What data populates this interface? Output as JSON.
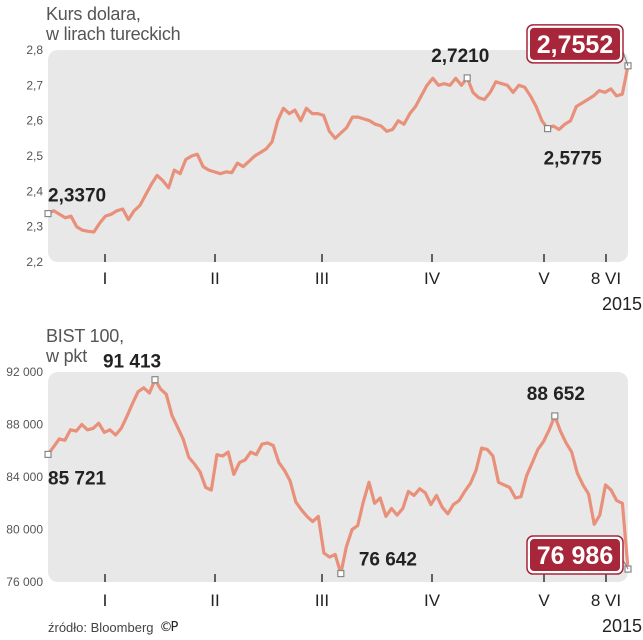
{
  "chart_data": [
    {
      "type": "line",
      "title": "Kurs dolara,",
      "subtitle": "w lirach tureckich",
      "ylim": [
        2.2,
        2.8
      ],
      "y_ticks": [
        "2,8",
        "2,7",
        "2,6",
        "2,5",
        "2,4",
        "2,3",
        "2,2"
      ],
      "x_tick_labels": [
        "I",
        "II",
        "III",
        "IV",
        "V",
        "8 VI"
      ],
      "year_label": "2015",
      "grid": false,
      "series": [
        {
          "color": "#e8907a",
          "values": [
            2.337,
            2.345,
            2.335,
            2.325,
            2.33,
            2.3,
            2.29,
            2.287,
            2.285,
            2.31,
            2.33,
            2.335,
            2.345,
            2.35,
            2.32,
            2.345,
            2.36,
            2.39,
            2.42,
            2.445,
            2.43,
            2.41,
            2.46,
            2.45,
            2.49,
            2.5,
            2.505,
            2.47,
            2.46,
            2.455,
            2.45,
            2.455,
            2.453,
            2.48,
            2.47,
            2.485,
            2.5,
            2.51,
            2.52,
            2.54,
            2.6,
            2.635,
            2.62,
            2.63,
            2.6,
            2.635,
            2.62,
            2.62,
            2.615,
            2.57,
            2.55,
            2.565,
            2.58,
            2.61,
            2.61,
            2.605,
            2.6,
            2.59,
            2.585,
            2.57,
            2.575,
            2.6,
            2.59,
            2.62,
            2.64,
            2.67,
            2.7,
            2.72,
            2.7,
            2.705,
            2.7,
            2.72,
            2.7,
            2.721,
            2.68,
            2.665,
            2.66,
            2.68,
            2.71,
            2.705,
            2.7,
            2.68,
            2.7,
            2.695,
            2.67,
            2.64,
            2.6,
            2.5775,
            2.585,
            2.575,
            2.59,
            2.6,
            2.64,
            2.65,
            2.66,
            2.67,
            2.685,
            2.68,
            2.69,
            2.67,
            2.675,
            2.7552
          ]
        }
      ],
      "annotations": [
        {
          "label": "2,3370",
          "index": 0,
          "value": 2.337
        },
        {
          "label": "2,7210",
          "index": 73,
          "value": 2.721
        },
        {
          "label": "2,5775",
          "index": 87,
          "value": 2.5775
        },
        {
          "label": "2,7552",
          "index": 101,
          "value": 2.7552,
          "highlight": true
        }
      ]
    },
    {
      "type": "line",
      "title": "BIST 100,",
      "subtitle": "w pkt",
      "ylim": [
        76000,
        92000
      ],
      "y_ticks": [
        "92 000",
        "88 000",
        "84 000",
        "80 000",
        "76 000"
      ],
      "x_tick_labels": [
        "I",
        "II",
        "III",
        "IV",
        "V",
        "8 VI"
      ],
      "year_label": "2015",
      "grid": false,
      "series": [
        {
          "color": "#e8907a",
          "values": [
            85721,
            86300,
            86900,
            86800,
            87600,
            87500,
            88000,
            87600,
            87700,
            88100,
            87400,
            87600,
            87200,
            87700,
            88600,
            89600,
            90500,
            90800,
            90400,
            91413,
            90700,
            90300,
            88700,
            87800,
            86900,
            85500,
            85000,
            84400,
            83200,
            83000,
            85700,
            85600,
            85900,
            84200,
            85100,
            85300,
            85900,
            85700,
            86500,
            86600,
            86400,
            85100,
            84500,
            83700,
            82100,
            81500,
            81000,
            80600,
            81000,
            78200,
            77900,
            78100,
            76642,
            78700,
            80000,
            80300,
            82100,
            83600,
            82000,
            82400,
            81000,
            81600,
            81100,
            81600,
            82900,
            82600,
            83100,
            82800,
            81900,
            82600,
            81700,
            81200,
            81900,
            82200,
            82900,
            83500,
            84500,
            86200,
            86100,
            85600,
            83600,
            83400,
            83200,
            82400,
            82500,
            84100,
            85100,
            86100,
            86700,
            87600,
            88652,
            87500,
            86600,
            85900,
            84300,
            83400,
            82700,
            80400,
            81100,
            83400,
            83000,
            82200,
            82000,
            76986
          ]
        }
      ],
      "annotations": [
        {
          "label": "85 721",
          "index": 0,
          "value": 85721
        },
        {
          "label": "91 413",
          "index": 19,
          "value": 91413
        },
        {
          "label": "76 642",
          "index": 52,
          "value": 76642
        },
        {
          "label": "88 652",
          "index": 90,
          "value": 88652
        },
        {
          "label": "76 986",
          "index": 103,
          "value": 76986,
          "highlight": true
        }
      ]
    }
  ],
  "source": {
    "text": "źródło: Bloomberg",
    "mark": "©P",
    "mark_icon": "cp-license-icon"
  },
  "colors": {
    "panel_bg": "#e8e8e8",
    "line": "#e8907a",
    "highlight_bg": "#a8263a",
    "marker": "#888888"
  }
}
